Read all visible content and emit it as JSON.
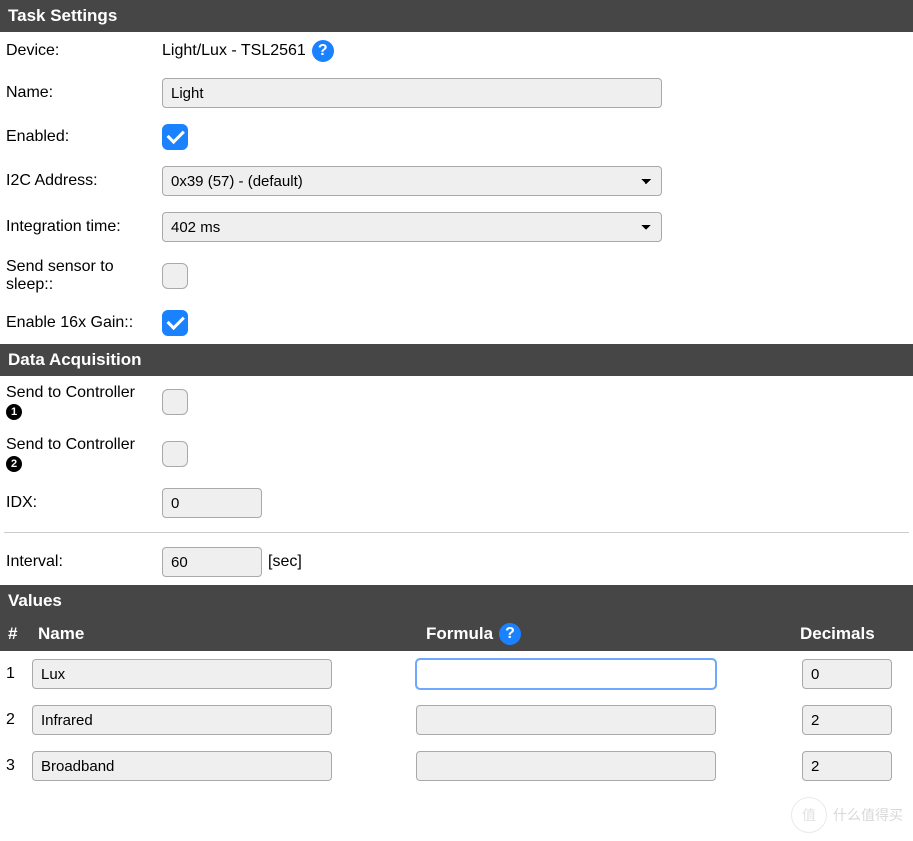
{
  "sections": {
    "task_settings": "Task Settings",
    "data_acquisition": "Data Acquisition",
    "values": "Values"
  },
  "task": {
    "device_label": "Device:",
    "device_value": "Light/Lux - TSL2561",
    "name_label": "Name:",
    "name_value": "Light",
    "enabled_label": "Enabled:",
    "enabled_checked": true,
    "i2c_label": "I2C Address:",
    "i2c_value": "0x39 (57) - (default)",
    "integration_label": "Integration time:",
    "integration_value": "402 ms",
    "sleep_label": "Send sensor to sleep::",
    "sleep_checked": false,
    "gain_label": "Enable 16x Gain::",
    "gain_checked": true
  },
  "acq": {
    "send1_label": "Send to Controller",
    "send1_num": "1",
    "send1_checked": false,
    "send2_label": "Send to Controller",
    "send2_num": "2",
    "send2_checked": false,
    "idx_label": "IDX:",
    "idx_value": "0",
    "interval_label": "Interval:",
    "interval_value": "60",
    "interval_unit": "[sec]"
  },
  "values_header": {
    "num": "#",
    "name": "Name",
    "formula": "Formula",
    "decimals": "Decimals"
  },
  "values_rows": [
    {
      "num": "1",
      "name": "Lux",
      "formula": "",
      "decimals": "0",
      "formula_focused": true
    },
    {
      "num": "2",
      "name": "Infrared",
      "formula": "",
      "decimals": "2",
      "formula_focused": false
    },
    {
      "num": "3",
      "name": "Broadband",
      "formula": "",
      "decimals": "2",
      "formula_focused": false
    }
  ],
  "watermark": {
    "circle": "值",
    "text": "什么值得买"
  }
}
